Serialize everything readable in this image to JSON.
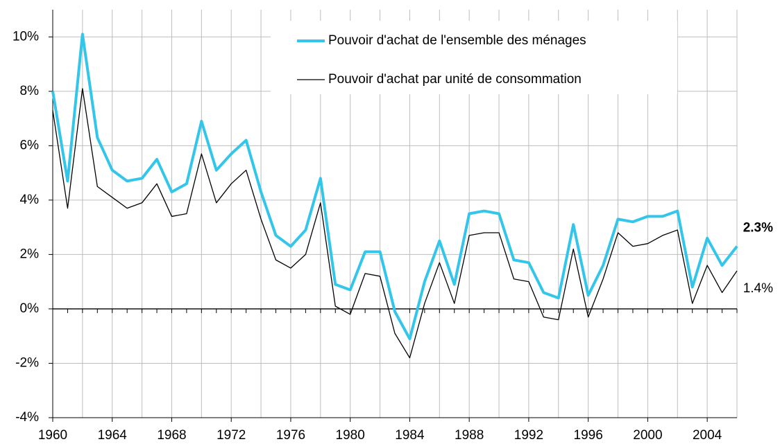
{
  "chart_data": {
    "type": "line",
    "x": [
      1960,
      1961,
      1962,
      1963,
      1964,
      1965,
      1966,
      1967,
      1968,
      1969,
      1970,
      1971,
      1972,
      1973,
      1974,
      1975,
      1976,
      1977,
      1978,
      1979,
      1980,
      1981,
      1982,
      1983,
      1984,
      1985,
      1986,
      1987,
      1988,
      1989,
      1990,
      1991,
      1992,
      1993,
      1994,
      1995,
      1996,
      1997,
      1998,
      1999,
      2000,
      2001,
      2002,
      2003,
      2004,
      2005,
      2006
    ],
    "series": [
      {
        "name": "Pouvoir d'achat de l'ensemble des ménages",
        "color": "#33c6ea",
        "values": [
          8.0,
          4.7,
          10.1,
          6.3,
          5.1,
          4.7,
          4.8,
          5.5,
          4.3,
          4.6,
          6.9,
          5.1,
          5.7,
          6.2,
          4.3,
          2.7,
          2.3,
          2.9,
          4.8,
          0.9,
          0.7,
          2.1,
          2.1,
          -0.1,
          -1.1,
          1.0,
          2.5,
          0.9,
          3.5,
          3.6,
          3.5,
          1.8,
          1.7,
          0.6,
          0.4,
          3.1,
          0.5,
          1.6,
          3.3,
          3.2,
          3.4,
          3.4,
          3.6,
          0.8,
          2.6,
          1.6,
          2.3
        ],
        "value_labels": [
          null,
          null,
          null,
          null,
          null,
          null,
          null,
          null,
          null,
          null,
          null,
          null,
          null,
          null,
          null,
          null,
          null,
          null,
          null,
          null,
          null,
          null,
          null,
          null,
          null,
          null,
          null,
          null,
          null,
          null,
          null,
          null,
          null,
          null,
          null,
          null,
          null,
          null,
          null,
          null,
          null,
          null,
          null,
          null,
          null,
          null,
          "2.3%"
        ]
      },
      {
        "name": "Pouvoir d'achat par unité de consommation",
        "color": "#000000",
        "values": [
          7.3,
          3.7,
          8.1,
          4.5,
          4.1,
          3.7,
          3.9,
          4.6,
          3.4,
          3.5,
          5.7,
          3.9,
          4.6,
          5.1,
          3.3,
          1.8,
          1.5,
          2.0,
          3.9,
          0.1,
          -0.2,
          1.3,
          1.2,
          -0.9,
          -1.8,
          0.2,
          1.7,
          0.2,
          2.7,
          2.8,
          2.8,
          1.1,
          1.0,
          -0.3,
          -0.4,
          2.2,
          -0.3,
          1.1,
          2.8,
          2.3,
          2.4,
          2.7,
          2.9,
          0.2,
          1.6,
          0.6,
          1.4
        ],
        "value_labels": [
          null,
          null,
          null,
          null,
          null,
          null,
          null,
          null,
          null,
          null,
          null,
          null,
          null,
          null,
          null,
          null,
          null,
          null,
          null,
          null,
          null,
          null,
          null,
          null,
          null,
          null,
          null,
          null,
          null,
          null,
          null,
          null,
          null,
          null,
          null,
          null,
          null,
          null,
          null,
          null,
          null,
          null,
          null,
          null,
          null,
          null,
          "1.4%"
        ]
      }
    ],
    "xlim": [
      1960,
      2006
    ],
    "xticks": [
      1960,
      1964,
      1968,
      1972,
      1976,
      1980,
      1984,
      1988,
      1992,
      1996,
      2000,
      2004
    ],
    "xgrid": [
      1960,
      1962,
      1964,
      1966,
      1968,
      1970,
      1972,
      1974,
      1976,
      1978,
      1980,
      1982,
      1984,
      1986,
      1988,
      1990,
      1992,
      1994,
      1996,
      1998,
      2000,
      2002,
      2004,
      2006
    ],
    "ylim": [
      -4,
      11
    ],
    "yticks": [
      {
        "value": -4,
        "label": "-4%"
      },
      {
        "value": -2,
        "label": "-2%"
      },
      {
        "value": 0,
        "label": "0%"
      },
      {
        "value": 2,
        "label": "2%"
      },
      {
        "value": 4,
        "label": "4%"
      },
      {
        "value": 6,
        "label": "6%"
      },
      {
        "value": 8,
        "label": "8%"
      },
      {
        "value": 10,
        "label": "10%"
      }
    ],
    "grid": true
  }
}
